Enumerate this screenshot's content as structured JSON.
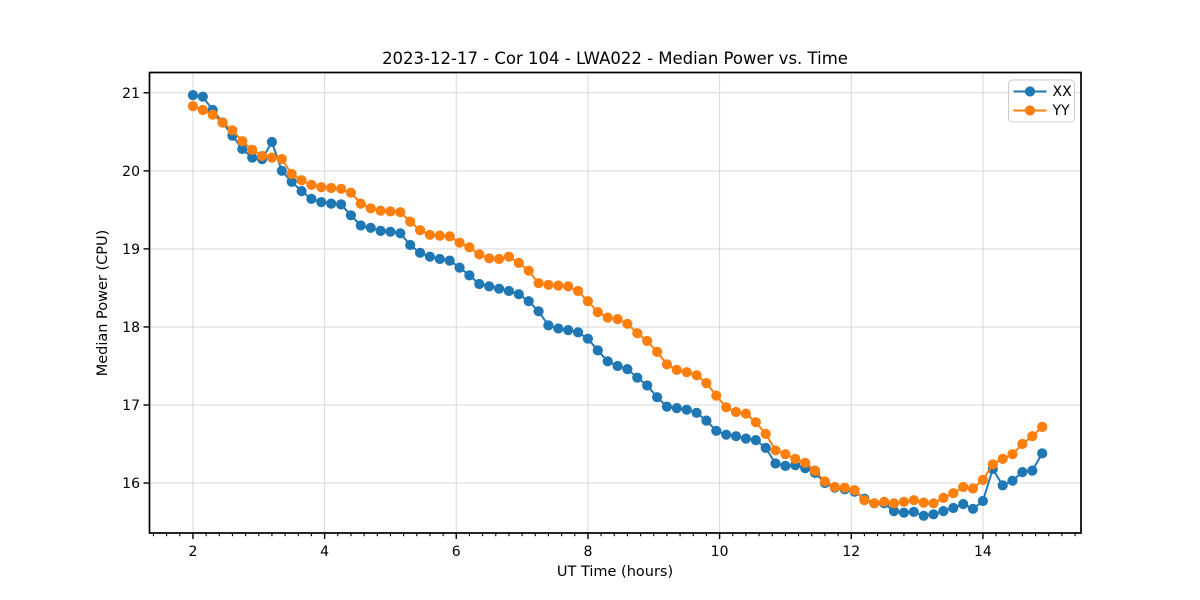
{
  "chart_data": {
    "type": "line",
    "title": "2023-12-17 - Cor 104 - LWA022 - Median Power vs. Time",
    "xlabel": "UT Time (hours)",
    "ylabel": "Median Power (CPU)",
    "xlim": [
      1.34,
      15.49
    ],
    "ylim": [
      15.36,
      21.26
    ],
    "xticks": [
      2,
      4,
      6,
      8,
      10,
      12,
      14
    ],
    "yticks": [
      16,
      17,
      18,
      19,
      20,
      21
    ],
    "x_minor_tick_step": 0.2,
    "grid": true,
    "grid_color": "#d9d9d9",
    "spine_color": "#000000",
    "background_color": "#ffffff",
    "legend": {
      "position": "upper right",
      "entries": [
        {
          "label": "XX",
          "color": "#1f77b4"
        },
        {
          "label": "YY",
          "color": "#ff7f0e"
        }
      ]
    },
    "x": [
      2.0,
      2.15,
      2.3,
      2.45,
      2.6,
      2.75,
      2.9,
      3.05,
      3.2,
      3.35,
      3.5,
      3.65,
      3.8,
      3.95,
      4.1,
      4.25,
      4.4,
      4.55,
      4.7,
      4.85,
      5.0,
      5.15,
      5.3,
      5.45,
      5.6,
      5.75,
      5.9,
      6.05,
      6.2,
      6.35,
      6.5,
      6.65,
      6.8,
      6.95,
      7.1,
      7.25,
      7.4,
      7.55,
      7.7,
      7.85,
      8.0,
      8.15,
      8.3,
      8.45,
      8.6,
      8.75,
      8.9,
      9.05,
      9.2,
      9.35,
      9.5,
      9.65,
      9.8,
      9.95,
      10.1,
      10.25,
      10.4,
      10.55,
      10.7,
      10.85,
      11.0,
      11.15,
      11.3,
      11.45,
      11.6,
      11.75,
      11.9,
      12.05,
      12.2,
      12.35,
      12.5,
      12.65,
      12.8,
      12.95,
      13.1,
      13.25,
      13.4,
      13.55,
      13.7,
      13.85,
      14.0,
      14.15,
      14.3,
      14.45,
      14.6,
      14.75,
      14.9
    ],
    "series": [
      {
        "name": "XX",
        "color": "#1f77b4",
        "values": [
          20.97,
          20.95,
          20.78,
          20.62,
          20.45,
          20.28,
          20.17,
          20.15,
          20.37,
          20.0,
          19.86,
          19.74,
          19.64,
          19.6,
          19.58,
          19.57,
          19.43,
          19.3,
          19.27,
          19.23,
          19.22,
          19.2,
          19.05,
          18.95,
          18.9,
          18.87,
          18.85,
          18.76,
          18.66,
          18.55,
          18.52,
          18.49,
          18.46,
          18.42,
          18.33,
          18.2,
          18.02,
          17.98,
          17.96,
          17.93,
          17.85,
          17.7,
          17.56,
          17.5,
          17.46,
          17.35,
          17.25,
          17.1,
          16.98,
          16.96,
          16.94,
          16.9,
          16.8,
          16.67,
          16.62,
          16.6,
          16.57,
          16.55,
          16.45,
          16.25,
          16.22,
          16.23,
          16.19,
          16.13,
          16.0,
          15.94,
          15.92,
          15.89,
          15.8,
          15.74,
          15.74,
          15.64,
          15.62,
          15.63,
          15.58,
          15.6,
          15.64,
          15.68,
          15.73,
          15.67,
          15.77,
          16.18,
          15.97,
          16.03,
          16.14,
          16.16,
          16.38
        ]
      },
      {
        "name": "YY",
        "color": "#ff7f0e",
        "values": [
          20.83,
          20.78,
          20.72,
          20.62,
          20.52,
          20.38,
          20.27,
          20.19,
          20.17,
          20.15,
          19.96,
          19.88,
          19.82,
          19.79,
          19.78,
          19.77,
          19.72,
          19.58,
          19.52,
          19.49,
          19.48,
          19.47,
          19.35,
          19.24,
          19.18,
          19.17,
          19.16,
          19.08,
          19.02,
          18.93,
          18.88,
          18.87,
          18.9,
          18.82,
          18.72,
          18.56,
          18.54,
          18.53,
          18.52,
          18.46,
          18.33,
          18.19,
          18.12,
          18.1,
          18.04,
          17.92,
          17.82,
          17.68,
          17.52,
          17.45,
          17.42,
          17.38,
          17.28,
          17.12,
          16.97,
          16.91,
          16.89,
          16.78,
          16.63,
          16.42,
          16.37,
          16.31,
          16.26,
          16.16,
          16.02,
          15.95,
          15.94,
          15.91,
          15.78,
          15.74,
          15.76,
          15.74,
          15.76,
          15.78,
          15.75,
          15.74,
          15.81,
          15.87,
          15.95,
          15.93,
          16.04,
          16.24,
          16.31,
          16.37,
          16.5,
          16.6,
          16.72
        ]
      }
    ]
  }
}
